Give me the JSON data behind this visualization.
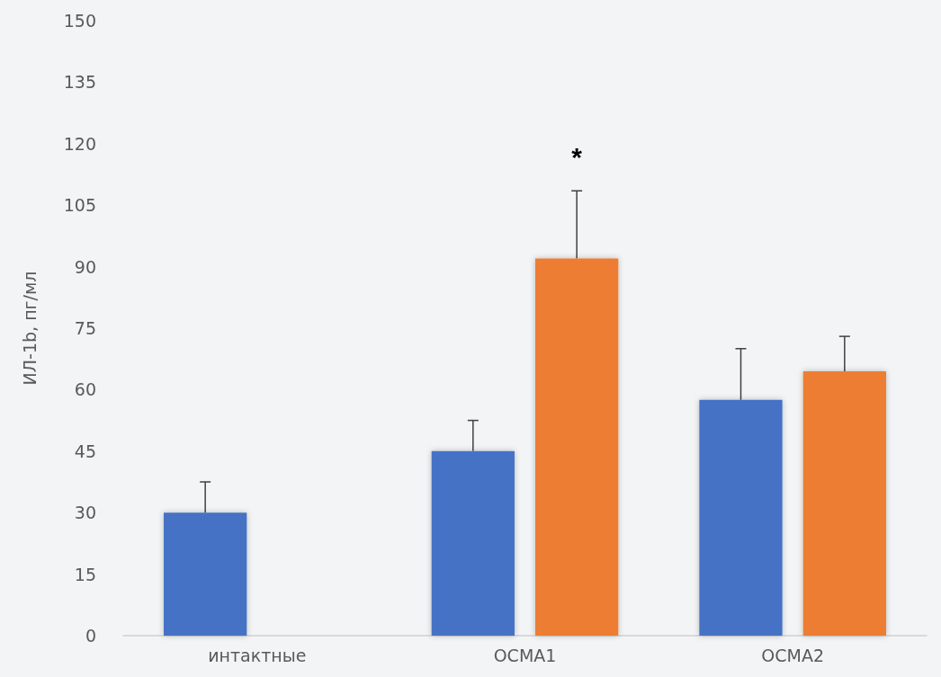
{
  "chart_data": {
    "type": "bar",
    "ylabel": "ИЛ-1b, пг/мл",
    "categories": [
      "интактные",
      "ОСМА1",
      "ОСМА2"
    ],
    "series": [
      {
        "color": "#4472c4",
        "values": [
          30,
          45,
          57.5
        ],
        "errors": [
          [
            30,
            37.5
          ],
          [
            45,
            52.5
          ],
          [
            57.5,
            70
          ]
        ]
      },
      {
        "color": "#ed7d31",
        "values": [
          null,
          92,
          64.5
        ],
        "errors": [
          null,
          [
            92,
            108.5
          ],
          [
            64.5,
            73
          ]
        ]
      }
    ],
    "ylim": [
      0,
      150
    ],
    "yticks": [
      0,
      15,
      30,
      45,
      60,
      75,
      90,
      105,
      120,
      135,
      150
    ],
    "grid": false,
    "annotations": [
      "*"
    ]
  }
}
